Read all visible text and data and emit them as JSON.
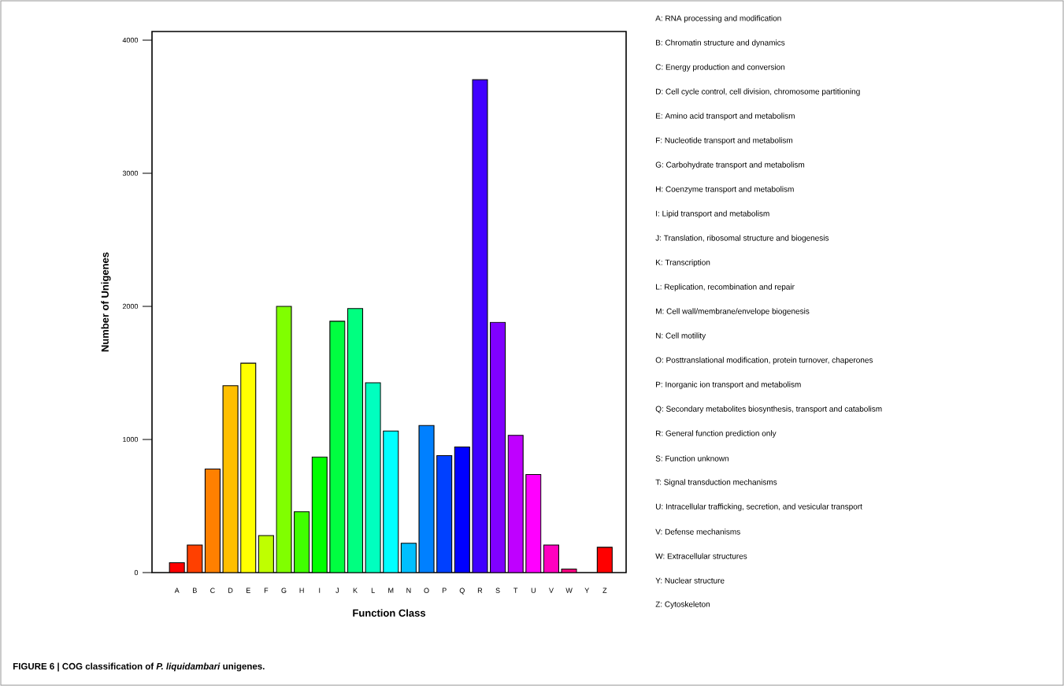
{
  "chart_data": {
    "type": "bar",
    "xlabel": "Function Class",
    "ylabel": "Number of Unigenes",
    "categories": [
      "A",
      "B",
      "C",
      "D",
      "E",
      "F",
      "G",
      "H",
      "I",
      "J",
      "K",
      "L",
      "M",
      "N",
      "O",
      "P",
      "Q",
      "R",
      "S",
      "T",
      "U",
      "V",
      "W",
      "Y",
      "Z"
    ],
    "values": [
      75,
      207,
      778,
      1404,
      1573,
      278,
      2000,
      457,
      868,
      1888,
      1984,
      1426,
      1064,
      220,
      1105,
      879,
      944,
      3703,
      1880,
      1031,
      737,
      207,
      27,
      null,
      190
    ],
    "colors": [
      "#ff0000",
      "#ff4000",
      "#ff8000",
      "#ffbf00",
      "#ffff00",
      "#bfff00",
      "#80ff00",
      "#40ff00",
      "#00ff00",
      "#00ff40",
      "#00ff80",
      "#00ffbf",
      "#00ffff",
      "#00bfff",
      "#0080ff",
      "#0040ff",
      "#0000ff",
      "#4000ff",
      "#8000ff",
      "#bf00ff",
      "#ff00ff",
      "#ff00bf",
      "#ff0080",
      "#ff0040",
      "#ff0000"
    ],
    "ylim": [
      0,
      4065
    ],
    "yticks": [
      0,
      1000,
      2000,
      3000,
      4000
    ],
    "annotations": [
      "A: RNA processing and modification",
      "B: Chromatin structure and dynamics",
      "C: Energy production and conversion",
      "D: Cell cycle control, cell division, chromosome partitioning",
      "E: Amino acid transport and metabolism",
      "F: Nucleotide transport and metabolism",
      "G: Carbohydrate transport and metabolism",
      "H: Coenzyme transport and metabolism",
      "I: Lipid transport and metabolism",
      "J: Translation, ribosomal structure and biogenesis",
      "K: Transcription",
      "L: Replication, recombination and repair",
      "M: Cell wall/membrane/envelope biogenesis",
      "N: Cell motility",
      "O: Posttranslational modification, protein turnover, chaperones",
      "P: Inorganic ion transport and metabolism",
      "Q: Secondary metabolites biosynthesis, transport and catabolism",
      "R: General function prediction only",
      "S: Function unknown",
      "T: Signal transduction mechanisms",
      "U: Intracellular trafficking, secretion, and vesicular transport",
      "V: Defense mechanisms",
      "W: Extracellular structures",
      "Y: Nuclear structure",
      "Z: Cytoskeleton",
      "FIGURE 6 | COG classification of *P. liquidambari* unigenes."
    ]
  }
}
